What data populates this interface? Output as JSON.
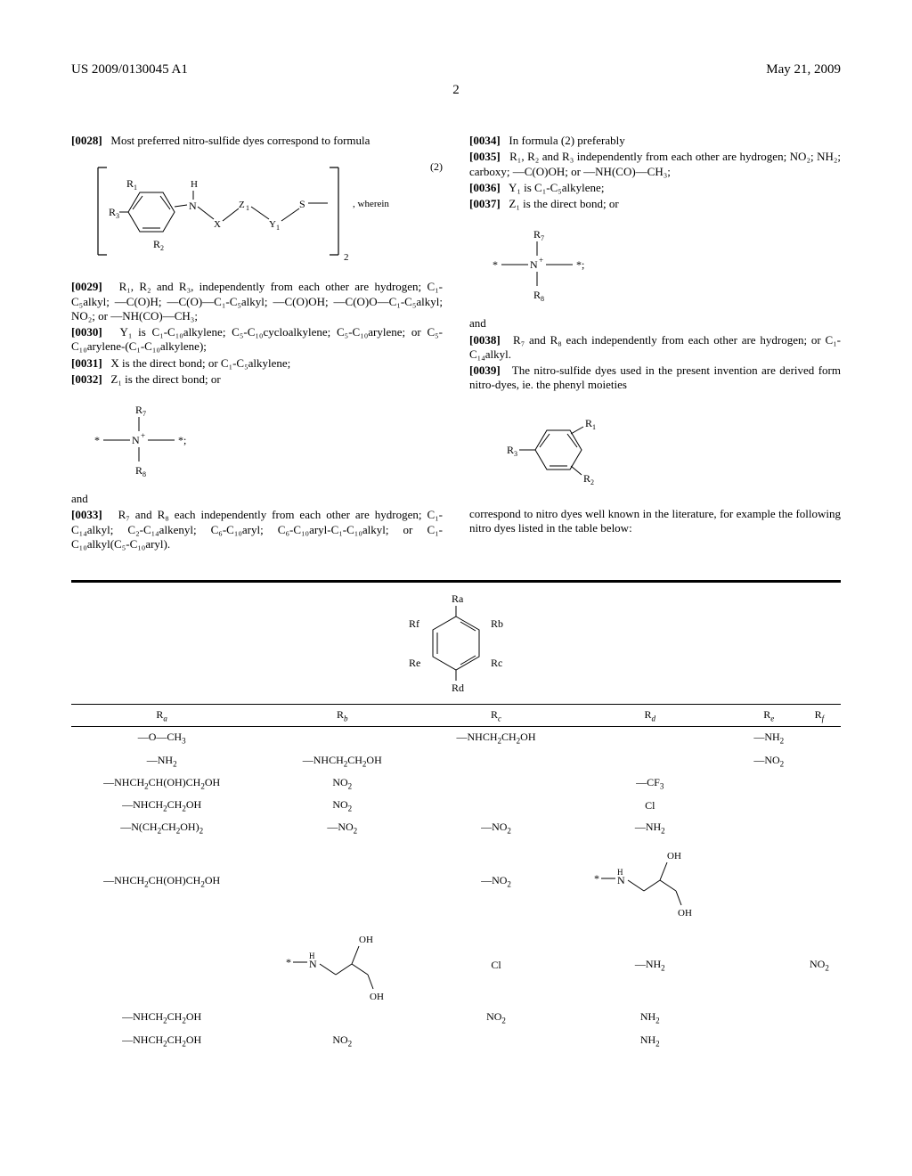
{
  "header": {
    "left": "US 2009/0130045 A1",
    "right": "May 21, 2009"
  },
  "page_number": "2",
  "left_col": {
    "p0028": {
      "num": "[0028]",
      "text": "Most preferred nitro-sulfide dyes correspond to formula"
    },
    "formula2_label": "(2)",
    "formula2_wherein": ", wherein",
    "p0029": {
      "num": "[0029]",
      "text": "R₁, R₂ and R₃, independently from each other are hydrogen; C₁-C₅alkyl; —C(O)H; —C(O)—C₁-C₅alkyl; —C(O)OH; —C(O)O—C₁-C₅alkyl; NO₂; or —NH(CO)—CH₃;"
    },
    "p0030": {
      "num": "[0030]",
      "text": "Y₁ is C₁-C₁₀alkylene; C₅-C₁₀cycloalkylene; C₅-C₁₀arylene; or C₅-C₁₀arylene-(C₁-C₁₀alkylene);"
    },
    "p0031": {
      "num": "[0031]",
      "text": "X is the direct bond; or C₁-C₅alkylene;"
    },
    "p0032": {
      "num": "[0032]",
      "text": "Z₁ is the direct bond; or"
    },
    "p0033_pre": "and",
    "p0033": {
      "num": "[0033]",
      "text": "R₇ and R₈ each independently from each other are hydrogen; C₁-C₁₄alkyl; C₂-C₁₄alkenyl; C₆-C₁₀aryl; C₆-C₁₀aryl-C₁-C₁₀alkyl; or C₁-C₁₀alkyl(C₅-C₁₀aryl)."
    }
  },
  "right_col": {
    "p0034": {
      "num": "[0034]",
      "text": "In formula (2) preferably"
    },
    "p0035": {
      "num": "[0035]",
      "text": "R₁, R₂ and R₃ independently from each other are hydrogen; NO₂; NH₂; carboxy; —C(O)OH; or —NH(CO)—CH₃;"
    },
    "p0036": {
      "num": "[0036]",
      "text": "Y₁ is C₁-C₅alkylene;"
    },
    "p0037": {
      "num": "[0037]",
      "text": "Z₁ is the direct bond; or"
    },
    "p0038_pre": "and",
    "p0038": {
      "num": "[0038]",
      "text": "R₇ and R₈ each independently from each other are hydrogen; or C₁-C₁₄alkyl."
    },
    "p0039": {
      "num": "[0039]",
      "text": "The nitro-sulfide dyes used in the present invention are derived form nitro-dyes, ie. the phenyl moieties"
    },
    "p0039_tail": "correspond to nitro dyes well known in the literature, for example the following nitro dyes listed in the table below:"
  },
  "table": {
    "ring_labels": [
      "Ra",
      "Rb",
      "Rc",
      "Rd",
      "Re",
      "Rf"
    ],
    "cols": [
      "Rₐ",
      "R_b",
      "R_c",
      "R_d",
      "R_e",
      "R_f"
    ],
    "rows": [
      {
        "ra": "—O—CH₃",
        "rb": "",
        "rc": "—NHCH₂CH₂OH",
        "rd": "",
        "re": "—NH₂",
        "rf": ""
      },
      {
        "ra": "—NH₂",
        "rb": "—NHCH₂CH₂OH",
        "rc": "",
        "rd": "",
        "re": "—NO₂",
        "rf": ""
      },
      {
        "ra": "—NHCH₂CH(OH)CH₂OH",
        "rb": "NO₂",
        "rc": "",
        "rd": "—CF₃",
        "re": "",
        "rf": ""
      },
      {
        "ra": "—NHCH₂CH₂OH",
        "rb": "NO₂",
        "rc": "",
        "rd": "Cl",
        "re": "",
        "rf": ""
      },
      {
        "ra": "—N(CH₂CH₂OH)₂",
        "rb": "—NO₂",
        "rc": "—NO₂",
        "rd": "—NH₂",
        "re": "",
        "rf": ""
      },
      {
        "ra": "—NHCH₂CH(OH)CH₂OH",
        "rb": "",
        "rc": "—NO₂",
        "rd": "STRUCT_OHOH",
        "re": "",
        "rf": ""
      },
      {
        "ra": "",
        "rb": "STRUCT_OHOH",
        "rc": "Cl",
        "rd": "—NH₂",
        "re": "",
        "rf": "NO₂"
      },
      {
        "ra": "—NHCH₂CH₂OH",
        "rb": "",
        "rc": "NO₂",
        "rd": "NH₂",
        "re": "",
        "rf": ""
      },
      {
        "ra": "—NHCH₂CH₂OH",
        "rb": "NO₂",
        "rc": "",
        "rd": "NH₂",
        "re": "",
        "rf": ""
      }
    ],
    "struct_ohoh_labels": {
      "star": "*",
      "nh": "H",
      "n": "N",
      "oh1": "OH",
      "oh2": "OH"
    }
  },
  "nplus_frag": {
    "star": "*",
    "r7": "R₇",
    "r8": "R₈",
    "n": "N⁺"
  },
  "benzene_frag": {
    "r1": "R₁",
    "r2": "R₂",
    "r3": "R₃"
  }
}
